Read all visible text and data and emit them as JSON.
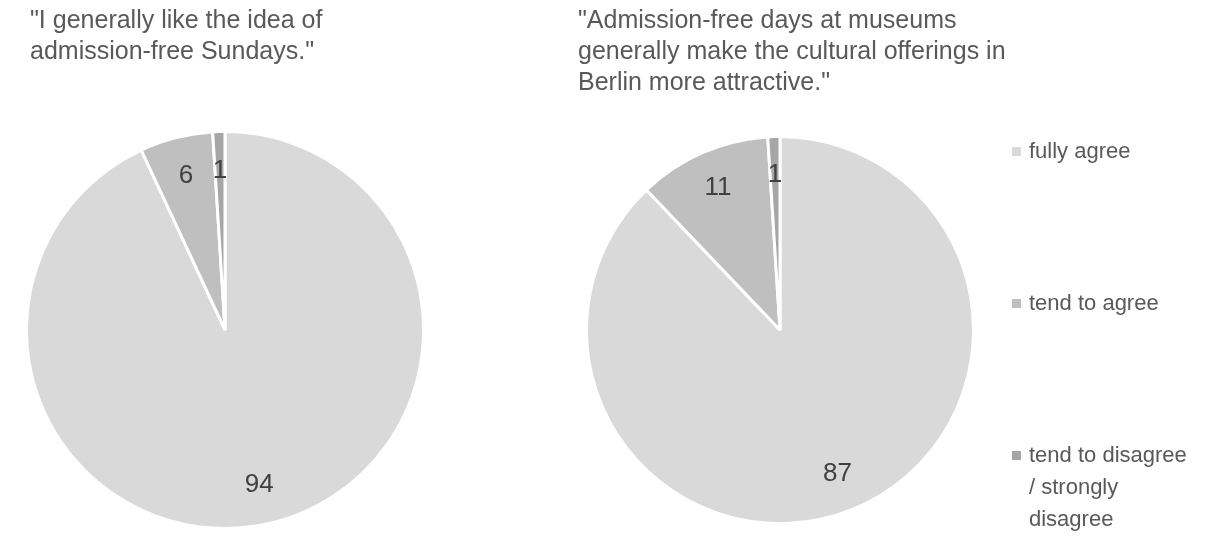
{
  "chart_data": [
    {
      "type": "pie",
      "title": "\"I generally like the idea of admission-free Sundays.\"",
      "categories": [
        null,
        null,
        null
      ],
      "values": [
        94,
        6,
        1
      ],
      "colors": [
        "#d9d9d9",
        "#bfbfbf",
        "#a6a6a6"
      ],
      "data_labels": true
    },
    {
      "type": "pie",
      "title": "\"Admission-free days at museums generally make the cultural offerings in Berlin more attractive.\"",
      "categories": [
        "fully agree",
        "tend to agree",
        "tend to disagree / strongly disagree"
      ],
      "values": [
        87,
        11,
        1
      ],
      "colors": [
        "#d9d9d9",
        "#bfbfbf",
        "#a6a6a6"
      ],
      "data_labels": true,
      "legend": "right"
    }
  ]
}
